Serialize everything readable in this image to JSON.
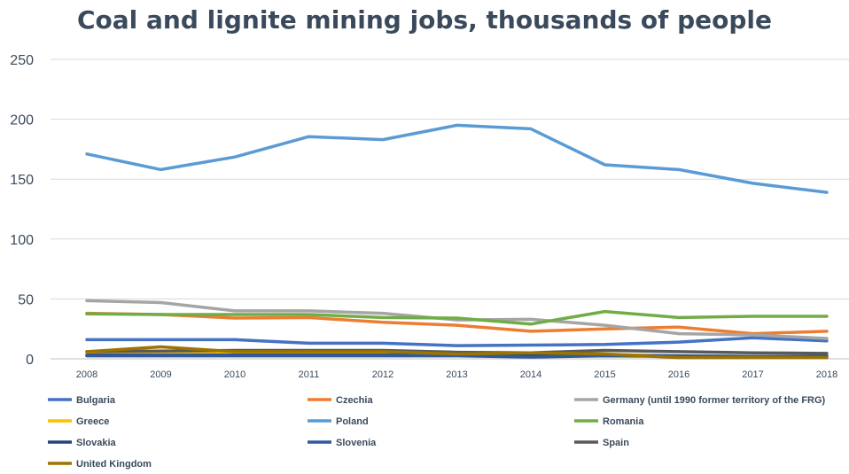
{
  "chart_data": {
    "type": "line",
    "title": "Coal and lignite mining jobs, thousands of people",
    "xlabel": "",
    "ylabel": "",
    "x": [
      "2008",
      "2009",
      "2010",
      "2011",
      "2012",
      "2013",
      "2014",
      "2015",
      "2016",
      "2017",
      "2018"
    ],
    "ylim": [
      0,
      250
    ],
    "yticks": [
      0,
      50,
      100,
      150,
      200,
      250
    ],
    "grid": true,
    "legend_position": "bottom",
    "series": [
      {
        "name": "Bulgaria",
        "color": "#4472c4",
        "values": [
          16,
          16,
          16,
          13,
          13,
          11,
          11.5,
          12,
          14,
          17.5,
          15
        ]
      },
      {
        "name": "Czechia",
        "color": "#ed7d31",
        "values": [
          38,
          37,
          34,
          34.5,
          30.5,
          28,
          23,
          25,
          26.5,
          21,
          23
        ]
      },
      {
        "name": "Germany (until 1990 former territory of the FRG)",
        "color": "#a5a5a5",
        "values": [
          48.5,
          47,
          40,
          40,
          38,
          32.5,
          33,
          28,
          21,
          20,
          17
        ]
      },
      {
        "name": "Greece",
        "color": "#ffc000",
        "values": [
          5,
          5,
          5,
          5,
          5,
          4.5,
          4.5,
          4,
          2,
          2,
          2
        ]
      },
      {
        "name": "Poland",
        "color": "#5b9bd5",
        "values": [
          171,
          158,
          168.5,
          185.5,
          183,
          195,
          192,
          162,
          158,
          146.5,
          139
        ]
      },
      {
        "name": "Romania",
        "color": "#70ad47",
        "values": [
          37.5,
          37,
          37,
          37,
          34.5,
          34,
          29,
          39.5,
          34.5,
          35.5,
          35.5
        ]
      },
      {
        "name": "Slovakia",
        "color": "#264478",
        "values": [
          3,
          3,
          3,
          3,
          3,
          3,
          2.5,
          3,
          2.5,
          2,
          2
        ]
      },
      {
        "name": "Slovenia",
        "color": "#2e5a9e",
        "values": [
          2.5,
          2.5,
          2.5,
          2.5,
          2.5,
          2.5,
          1.5,
          2.5,
          2,
          2,
          2
        ]
      },
      {
        "name": "Spain",
        "color": "#595959",
        "values": [
          6,
          6.5,
          7,
          7,
          7,
          5.5,
          5,
          7,
          6,
          5,
          4.5
        ]
      },
      {
        "name": "United Kingdom",
        "color": "#9c7400",
        "values": [
          6,
          10,
          6,
          6,
          6,
          4,
          5,
          4,
          1,
          1,
          1
        ]
      }
    ]
  }
}
